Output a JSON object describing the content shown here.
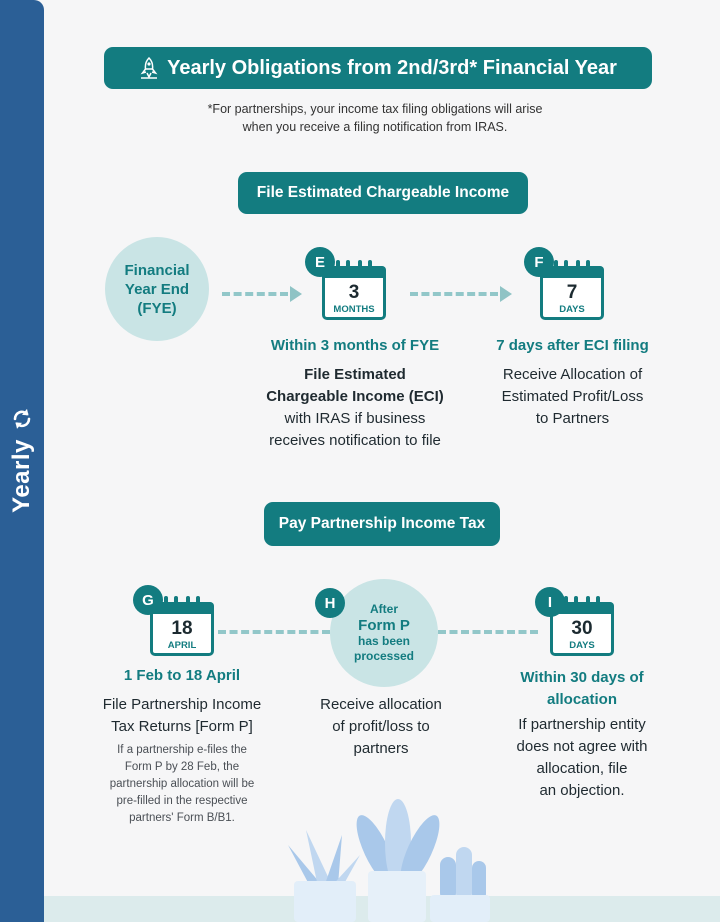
{
  "sidebar": {
    "label": "Yearly",
    "icon": "refresh-cycle-icon"
  },
  "header": {
    "title": "Yearly Obligations from 2nd/3rd* Financial Year",
    "icon": "rocket-icon",
    "footnote_line1": "*For partnerships, your income tax filing obligations will arise",
    "footnote_line2": "when you receive a filing notification from IRAS."
  },
  "section_eci": {
    "title": "File Estimated Chargeable Income",
    "fye": {
      "line1": "Financial",
      "line2": "Year End",
      "line3": "(FYE)"
    },
    "step_e": {
      "badge": "E",
      "number": "3",
      "unit": "MONTHS",
      "heading": "Within 3 months of FYE",
      "bold_line1": "File Estimated",
      "bold_line2": "Chargeable Income (ECI)",
      "line3": "with IRAS if business",
      "line4": "receives notification to file"
    },
    "step_f": {
      "badge": "F",
      "number": "7",
      "unit": "DAYS",
      "heading": "7 days after ECI filing",
      "line1": "Receive Allocation of",
      "line2": "Estimated Profit/Loss",
      "line3": "to Partners"
    }
  },
  "section_tax": {
    "title": "Pay Partnership Income Tax",
    "step_g": {
      "badge": "G",
      "number": "18",
      "unit": "APRIL",
      "heading": "1 Feb to 18 April",
      "line1": "File Partnership Income",
      "line2": "Tax Returns [Form P]",
      "note1": "If a partnership e-files the",
      "note2": "Form P by 28 Feb, the",
      "note3": "partnership allocation will be",
      "note4": "pre-filled in the respective",
      "note5": "partners' Form B/B1."
    },
    "step_h": {
      "badge": "H",
      "circle_line1": "After",
      "circle_line2": "Form P",
      "circle_line3": "has been",
      "circle_line4": "processed",
      "line1": "Receive allocation",
      "line2": "of profit/loss to",
      "line3": "partners"
    },
    "step_i": {
      "badge": "I",
      "number": "30",
      "unit": "DAYS",
      "heading_line1": "Within 30 days of",
      "heading_line2": "allocation",
      "line1": "If partnership entity",
      "line2": "does not agree with",
      "line3": "allocation, file",
      "line4": "an objection."
    }
  },
  "colors": {
    "teal": "#137c80",
    "light_teal": "#c9e4e5",
    "sidebar_blue": "#2b5f96",
    "plant_blue": "#a9c8ea"
  }
}
